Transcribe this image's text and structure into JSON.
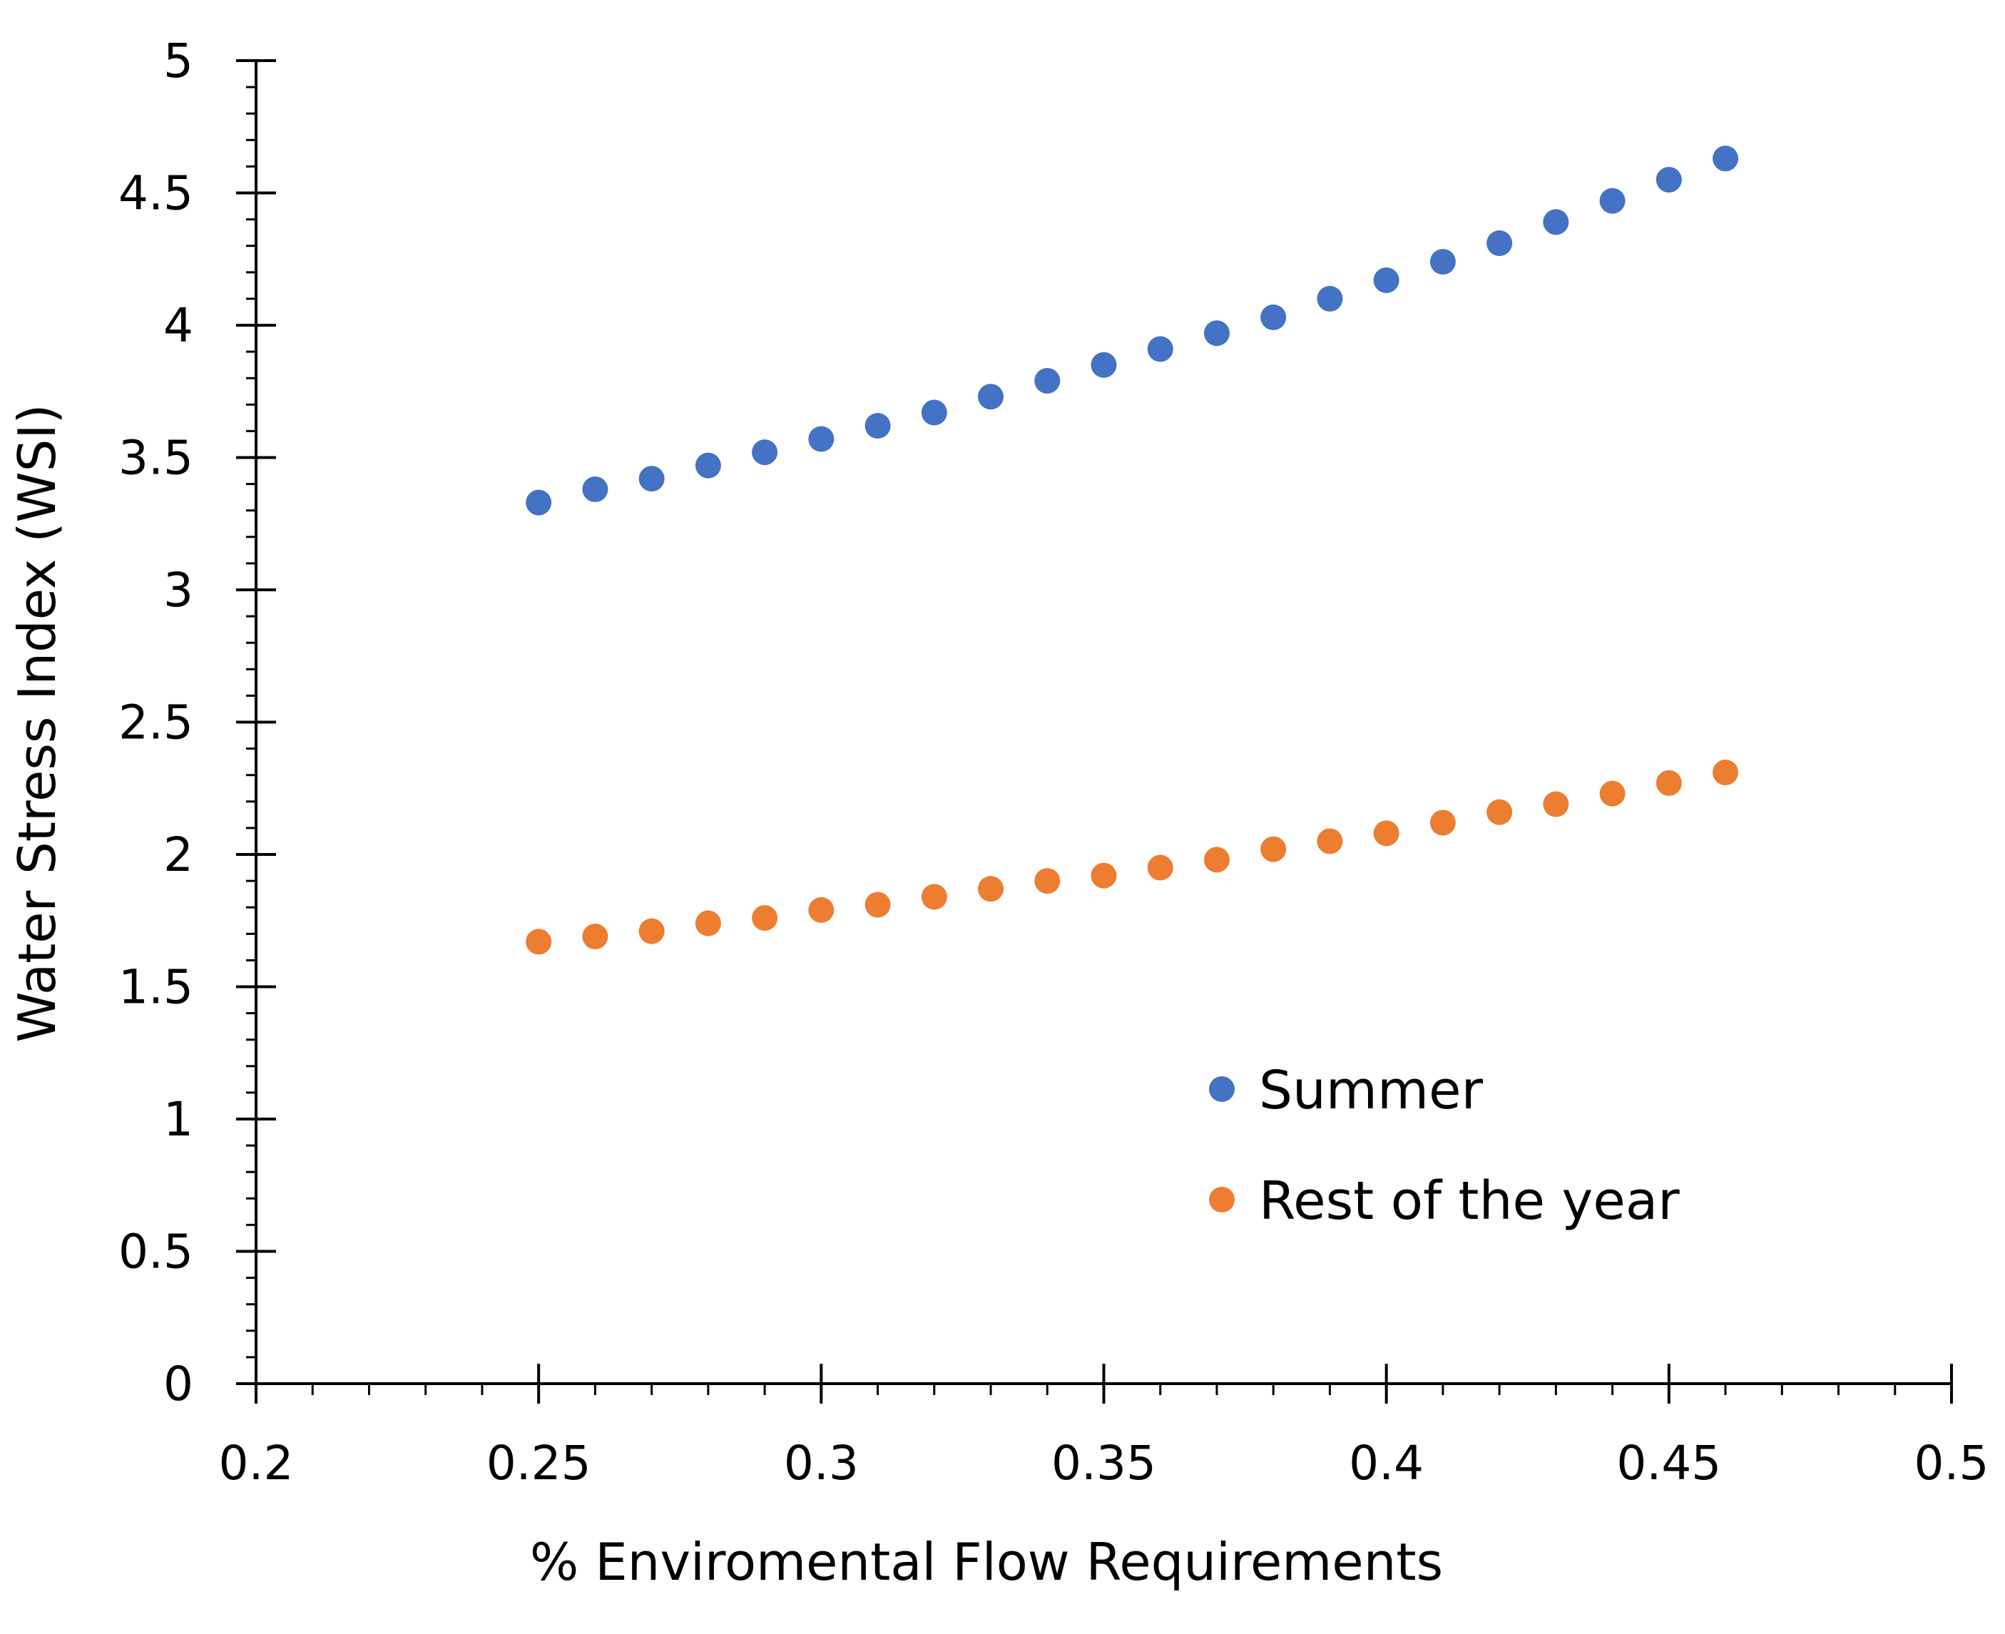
{
  "chart_data": {
    "type": "scatter",
    "title": "",
    "xlabel": "% Enviromental Flow Requirements",
    "ylabel": "Water Stress Index (WSI)",
    "xlim": [
      0.2,
      0.5
    ],
    "ylim": [
      0,
      5
    ],
    "x_ticks": [
      0.2,
      0.25,
      0.3,
      0.35,
      0.4,
      0.45,
      0.5
    ],
    "x_tick_labels": [
      "0.2",
      "0.25",
      "0.3",
      "0.35",
      "0.4",
      "0.45",
      "0.5"
    ],
    "y_ticks": [
      0,
      0.5,
      1,
      1.5,
      2,
      2.5,
      3,
      3.5,
      4,
      4.5,
      5
    ],
    "y_tick_labels": [
      "0",
      "0.5",
      "1",
      "1.5",
      "2",
      "2.5",
      "3",
      "3.5",
      "4",
      "4.5",
      "5"
    ],
    "grid": false,
    "legend_position": "lower-right",
    "x": [
      0.25,
      0.26,
      0.27,
      0.28,
      0.29,
      0.3,
      0.31,
      0.32,
      0.33,
      0.34,
      0.35,
      0.36,
      0.37,
      0.38,
      0.39,
      0.4,
      0.41,
      0.42,
      0.43,
      0.44,
      0.45,
      0.46
    ],
    "series": [
      {
        "name": "Summer",
        "color": "#4472C4",
        "values": [
          3.33,
          3.38,
          3.42,
          3.47,
          3.52,
          3.57,
          3.62,
          3.67,
          3.73,
          3.79,
          3.85,
          3.91,
          3.97,
          4.03,
          4.1,
          4.17,
          4.24,
          4.31,
          4.39,
          4.47,
          4.55,
          4.63
        ]
      },
      {
        "name": "Rest of the year",
        "color": "#ED7D31",
        "values": [
          1.67,
          1.69,
          1.71,
          1.74,
          1.76,
          1.79,
          1.81,
          1.84,
          1.87,
          1.9,
          1.92,
          1.95,
          1.98,
          2.02,
          2.05,
          2.08,
          2.12,
          2.16,
          2.19,
          2.23,
          2.27,
          2.31
        ]
      }
    ]
  }
}
